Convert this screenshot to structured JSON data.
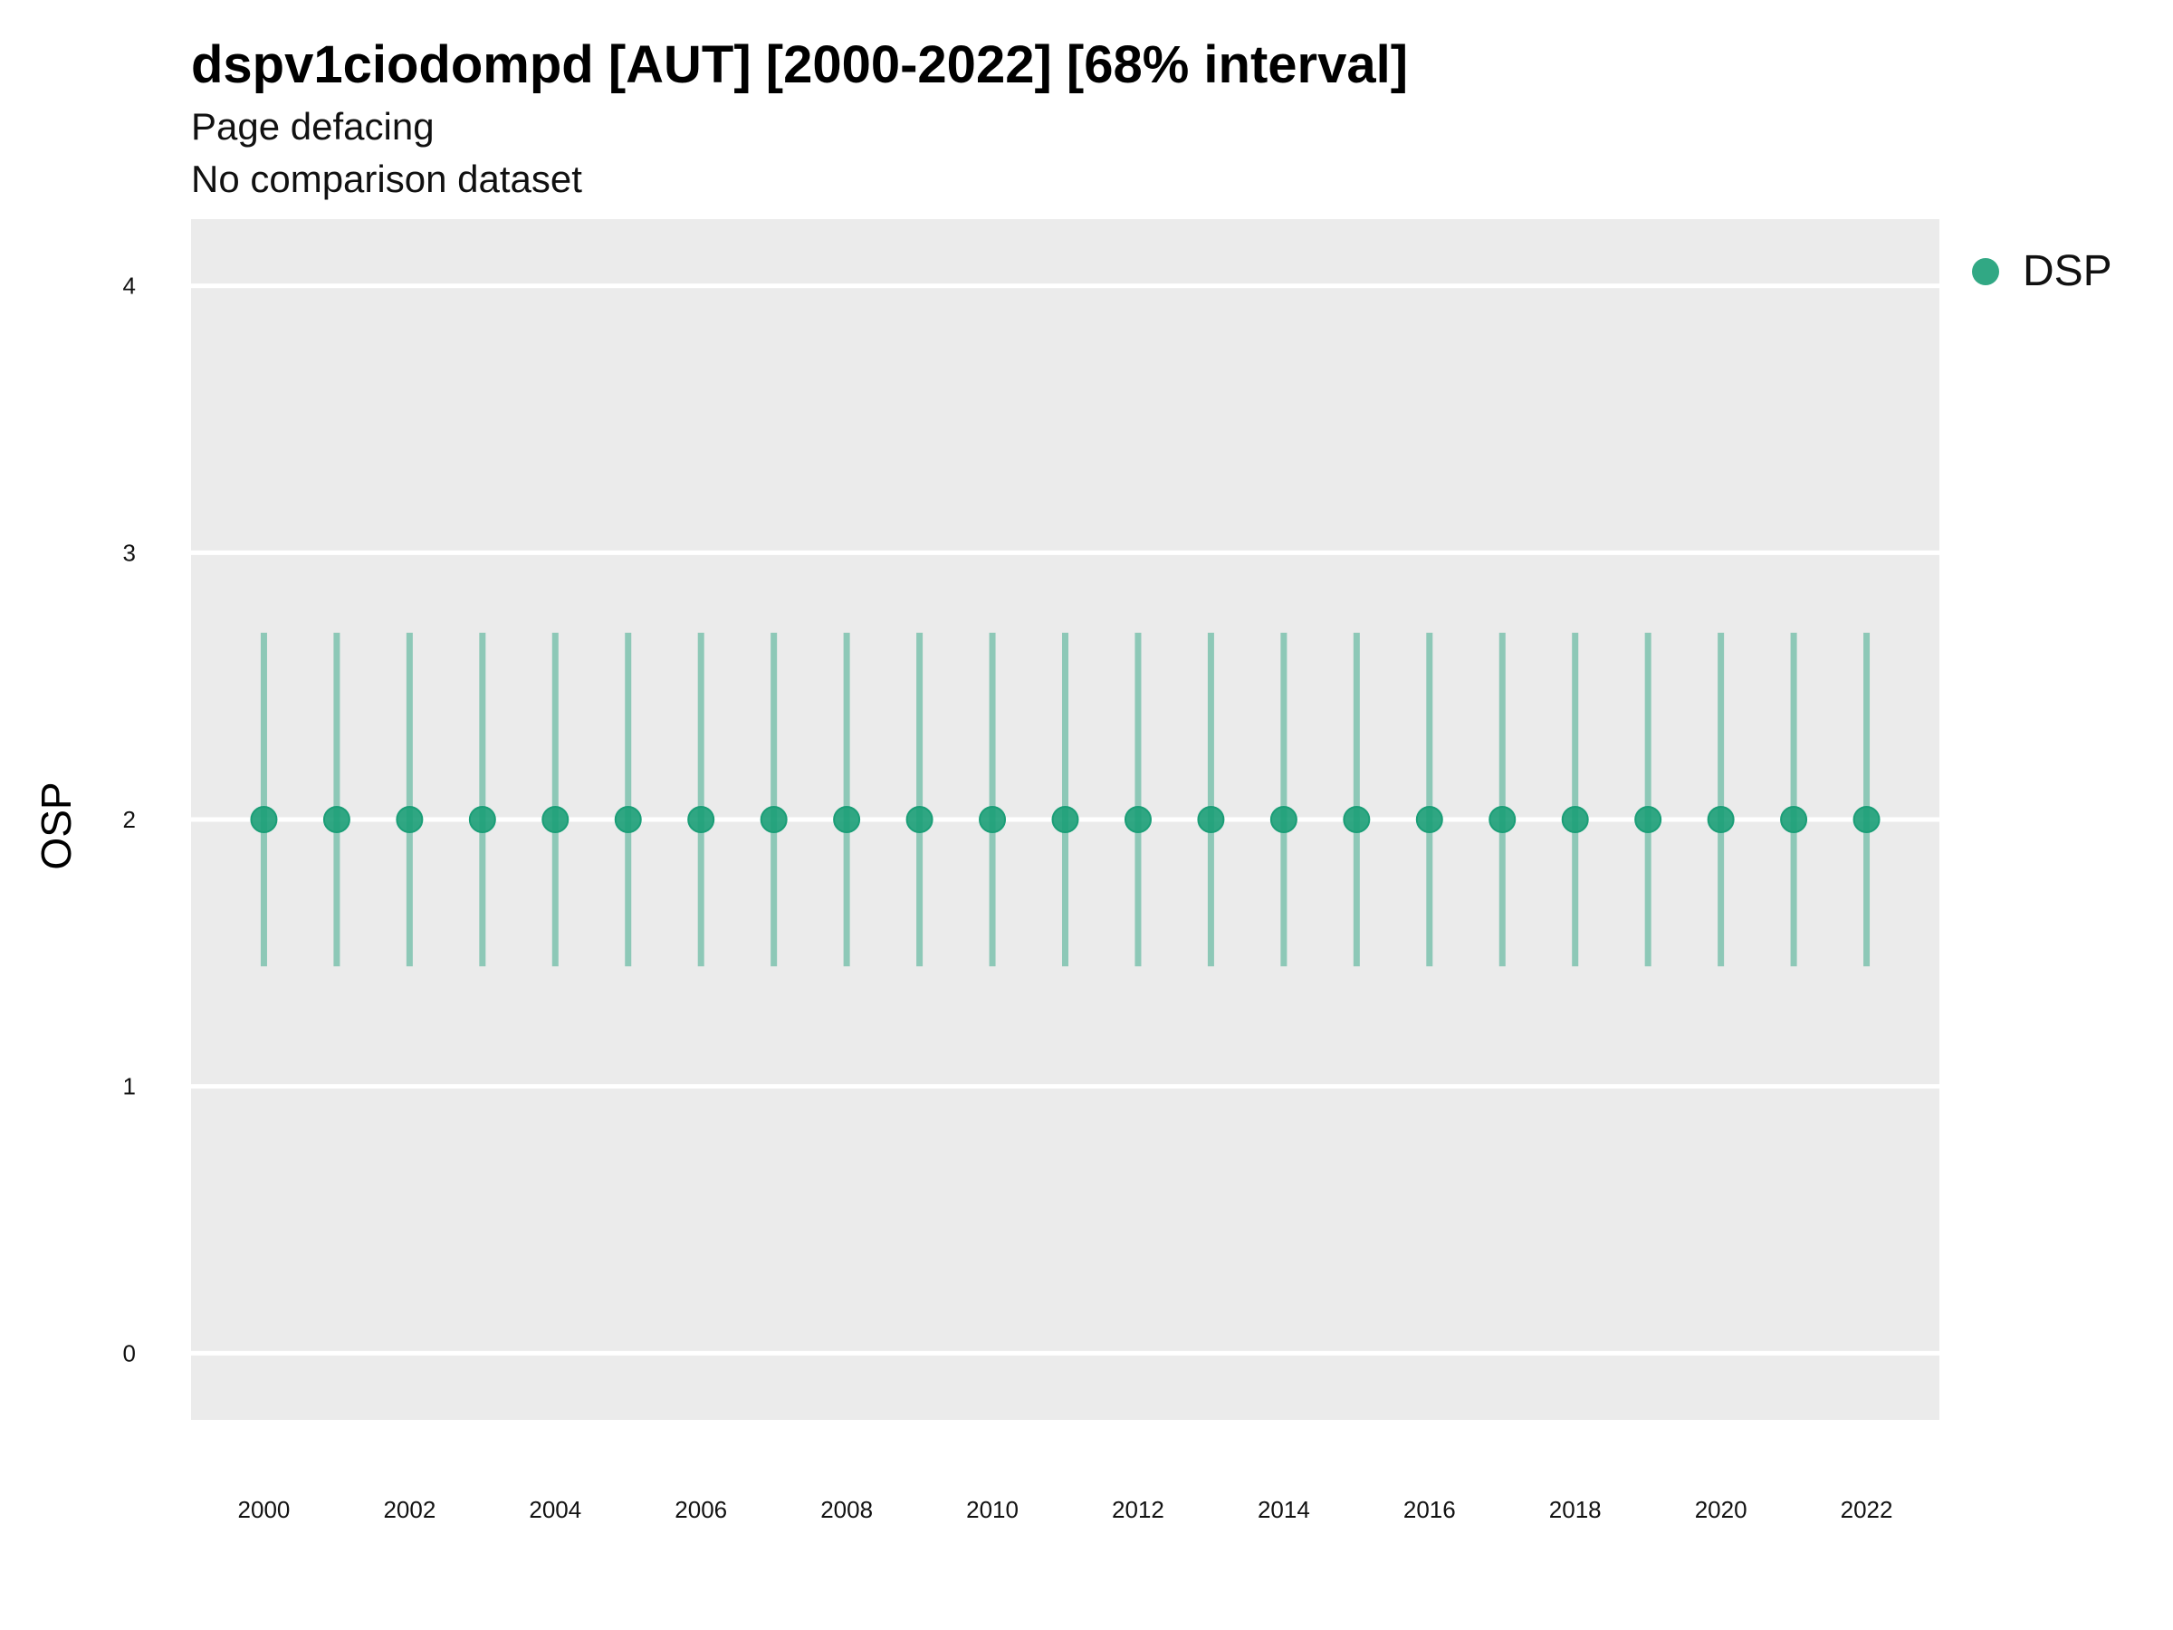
{
  "chart_data": {
    "type": "scatter",
    "title": "dspv1ciodompd [AUT] [2000-2022] [68% interval]",
    "subtitle_lines": [
      "Page defacing",
      "No comparison dataset"
    ],
    "xlabel": "",
    "ylabel": "OSP",
    "x_ticks": [
      "2000",
      "2002",
      "2004",
      "2006",
      "2008",
      "2010",
      "2012",
      "2014",
      "2016",
      "2018",
      "2020",
      "2022"
    ],
    "y_ticks": [
      "0",
      "1",
      "2",
      "3",
      "4"
    ],
    "ylim": [
      -0.25,
      4.25
    ],
    "xlim": [
      1999,
      2023
    ],
    "grid": true,
    "legend_position": "right",
    "series": [
      {
        "name": "DSP",
        "color": "#1b9e77",
        "x": [
          2000,
          2001,
          2002,
          2003,
          2004,
          2005,
          2006,
          2007,
          2008,
          2009,
          2010,
          2011,
          2012,
          2013,
          2014,
          2015,
          2016,
          2017,
          2018,
          2019,
          2020,
          2021,
          2022
        ],
        "y": [
          2,
          2,
          2,
          2,
          2,
          2,
          2,
          2,
          2,
          2,
          2,
          2,
          2,
          2,
          2,
          2,
          2,
          2,
          2,
          2,
          2,
          2,
          2
        ],
        "lower": [
          1.45,
          1.45,
          1.45,
          1.45,
          1.45,
          1.45,
          1.45,
          1.45,
          1.45,
          1.45,
          1.45,
          1.45,
          1.45,
          1.45,
          1.45,
          1.45,
          1.45,
          1.45,
          1.45,
          1.45,
          1.45,
          1.45,
          1.45
        ],
        "upper": [
          2.7,
          2.7,
          2.7,
          2.7,
          2.7,
          2.7,
          2.7,
          2.7,
          2.7,
          2.7,
          2.7,
          2.7,
          2.7,
          2.7,
          2.7,
          2.7,
          2.7,
          2.7,
          2.7,
          2.7,
          2.7,
          2.7,
          2.7
        ]
      }
    ]
  }
}
